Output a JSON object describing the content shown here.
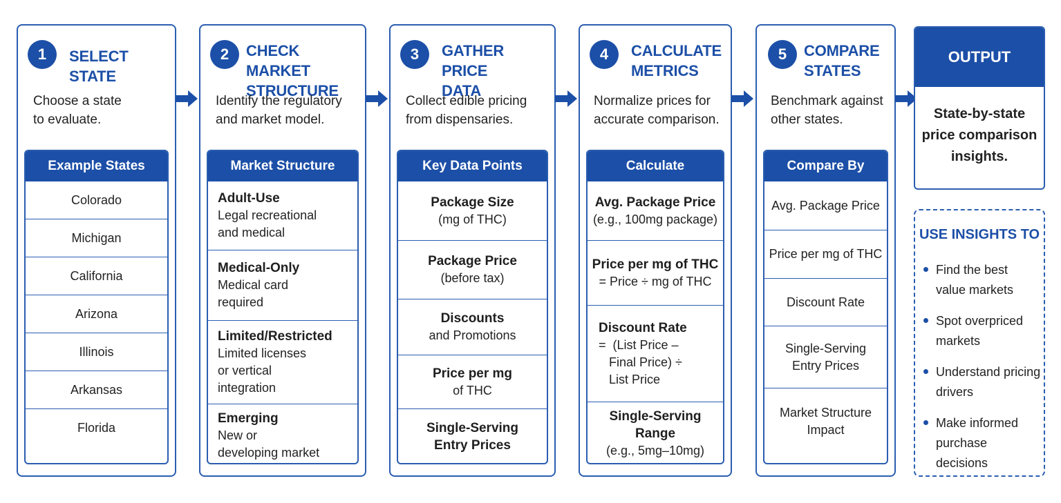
{
  "colors": {
    "primary": "#1c4fa7",
    "border": "#2a5db0",
    "text": "#222222"
  },
  "steps": [
    {
      "number": "1",
      "title": "SELECT STATE",
      "description": "Choose a state\nto evaluate.",
      "box_title": "Example States",
      "items": [
        {
          "text": "Colorado"
        },
        {
          "text": "Michigan"
        },
        {
          "text": "California"
        },
        {
          "text": "Arizona"
        },
        {
          "text": "Illinois"
        },
        {
          "text": "Arkansas"
        },
        {
          "text": "Florida"
        }
      ]
    },
    {
      "number": "2",
      "title": "CHECK MARKET\nSTRUCTURE",
      "description": "Identify the regulatory\nand market model.",
      "box_title": "Market Structure",
      "items": [
        {
          "title": "Adult-Use",
          "sub": "Legal recreational\nand medical"
        },
        {
          "title": "Medical-Only",
          "sub": "Medical card\nrequired"
        },
        {
          "title": "Limited/Restricted",
          "sub": "Limited licenses\nor vertical\nintegration"
        },
        {
          "title": "Emerging",
          "sub": "New or\ndeveloping market"
        }
      ]
    },
    {
      "number": "3",
      "title": "GATHER PRICE\nDATA",
      "description": "Collect edible pricing\nfrom dispensaries.",
      "box_title": "Key Data Points",
      "items": [
        {
          "title": "Package Size",
          "sub": "(mg of THC)"
        },
        {
          "title": "Package Price",
          "sub": "(before tax)"
        },
        {
          "title": "Discounts",
          "sub": "and Promotions"
        },
        {
          "title": "Price per mg",
          "sub": "of THC"
        },
        {
          "title": "Single-Serving",
          "title2": "Entry Prices"
        }
      ]
    },
    {
      "number": "4",
      "title": "CALCULATE\nMETRICS",
      "description": "Normalize prices for\naccurate comparison.",
      "box_title": "Calculate",
      "items": [
        {
          "title": "Avg. Package Price",
          "sub": "(e.g., 100mg package)"
        },
        {
          "title": "Price per mg of THC",
          "sub": "= Price ÷ mg of THC"
        },
        {
          "title": "Discount Rate",
          "formula": "=  (List Price –\n   Final Price) ÷\n   List Price"
        },
        {
          "title": "Single-Serving Range",
          "sub": "(e.g., 5mg–10mg)"
        }
      ]
    },
    {
      "number": "5",
      "title": "COMPARE\nSTATES",
      "description": "Benchmark against\nother states.",
      "box_title": "Compare By",
      "items": [
        {
          "text": "Avg. Package Price"
        },
        {
          "text": "Price per mg of THC"
        },
        {
          "text": "Discount Rate"
        },
        {
          "text": "Single-Serving\nEntry Prices"
        },
        {
          "text": "Market Structure\nImpact"
        }
      ]
    }
  ],
  "output": {
    "title": "OUTPUT",
    "text": "State-by-state\nprice comparison\ninsights."
  },
  "insights": {
    "title": "USE INSIGHTS TO",
    "items": [
      "Find the best\nvalue markets",
      "Spot overpriced\nmarkets",
      "Understand pricing\ndrivers",
      "Make informed\npurchase decisions"
    ]
  }
}
